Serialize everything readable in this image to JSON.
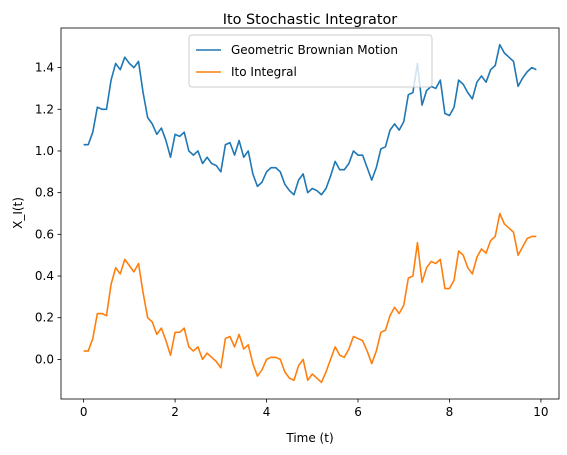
{
  "chart_data": {
    "type": "line",
    "title": "Ito Stochastic Integrator",
    "xlabel": "Time (t)",
    "ylabel": "X_I(t)",
    "xlim": [
      -0.495,
      10.395
    ],
    "ylim": [
      -0.19,
      1.59
    ],
    "xticks": [
      0,
      2,
      4,
      6,
      8,
      10
    ],
    "yticks": [
      0.0,
      0.2,
      0.4,
      0.6,
      0.8,
      1.0,
      1.2,
      1.4
    ],
    "grid": false,
    "legend_position": "upper center",
    "x": [
      0.0,
      0.1,
      0.2,
      0.3,
      0.4,
      0.5,
      0.6,
      0.7,
      0.8,
      0.9,
      1.0,
      1.1,
      1.2,
      1.3,
      1.4,
      1.5,
      1.6,
      1.7,
      1.8,
      1.9,
      2.0,
      2.1,
      2.2,
      2.3,
      2.4,
      2.5,
      2.6,
      2.7,
      2.8,
      2.9,
      3.0,
      3.1,
      3.2,
      3.3,
      3.4,
      3.5,
      3.6,
      3.7,
      3.8,
      3.9,
      4.0,
      4.1,
      4.2,
      4.3,
      4.4,
      4.5,
      4.6,
      4.7,
      4.8,
      4.9,
      5.0,
      5.1,
      5.2,
      5.3,
      5.4,
      5.5,
      5.6,
      5.7,
      5.8,
      5.9,
      6.0,
      6.1,
      6.2,
      6.3,
      6.4,
      6.5,
      6.6,
      6.7,
      6.8,
      6.9,
      7.0,
      7.1,
      7.2,
      7.3,
      7.4,
      7.5,
      7.6,
      7.7,
      7.8,
      7.9,
      8.0,
      8.1,
      8.2,
      8.3,
      8.4,
      8.5,
      8.6,
      8.7,
      8.8,
      8.9,
      9.0,
      9.1,
      9.2,
      9.3,
      9.4,
      9.5,
      9.6,
      9.7,
      9.8,
      9.9
    ],
    "series": [
      {
        "name": "Geometric Brownian Motion",
        "color": "#1f77b4",
        "values": [
          1.03,
          1.03,
          1.09,
          1.21,
          1.2,
          1.2,
          1.34,
          1.42,
          1.39,
          1.45,
          1.42,
          1.4,
          1.43,
          1.28,
          1.16,
          1.13,
          1.08,
          1.11,
          1.05,
          0.97,
          1.08,
          1.07,
          1.09,
          1.0,
          0.98,
          1.0,
          0.94,
          0.97,
          0.94,
          0.93,
          0.9,
          1.03,
          1.04,
          0.98,
          1.05,
          0.97,
          1.0,
          0.89,
          0.83,
          0.85,
          0.9,
          0.92,
          0.92,
          0.9,
          0.84,
          0.81,
          0.79,
          0.86,
          0.89,
          0.8,
          0.82,
          0.81,
          0.79,
          0.82,
          0.88,
          0.95,
          0.91,
          0.91,
          0.94,
          1.0,
          0.98,
          0.98,
          0.92,
          0.86,
          0.92,
          1.01,
          1.02,
          1.1,
          1.13,
          1.1,
          1.14,
          1.27,
          1.28,
          1.42,
          1.22,
          1.29,
          1.31,
          1.3,
          1.34,
          1.18,
          1.17,
          1.21,
          1.34,
          1.32,
          1.28,
          1.25,
          1.33,
          1.36,
          1.33,
          1.39,
          1.41,
          1.51,
          1.47,
          1.45,
          1.43,
          1.31,
          1.35,
          1.38,
          1.4,
          1.39
        ]
      },
      {
        "name": "Ito Integral",
        "color": "#ff7f0e",
        "values": [
          0.04,
          0.04,
          0.1,
          0.22,
          0.22,
          0.21,
          0.36,
          0.44,
          0.41,
          0.48,
          0.45,
          0.42,
          0.46,
          0.32,
          0.2,
          0.18,
          0.12,
          0.15,
          0.09,
          0.02,
          0.13,
          0.13,
          0.15,
          0.06,
          0.04,
          0.06,
          0.0,
          0.03,
          0.01,
          -0.01,
          -0.04,
          0.1,
          0.11,
          0.06,
          0.12,
          0.05,
          0.07,
          -0.02,
          -0.08,
          -0.05,
          0.0,
          0.01,
          0.01,
          0.0,
          -0.06,
          -0.09,
          -0.1,
          -0.03,
          0.0,
          -0.1,
          -0.07,
          -0.09,
          -0.11,
          -0.06,
          0.0,
          0.06,
          0.02,
          0.01,
          0.05,
          0.11,
          0.1,
          0.09,
          0.04,
          -0.02,
          0.04,
          0.13,
          0.14,
          0.21,
          0.25,
          0.22,
          0.26,
          0.39,
          0.4,
          0.56,
          0.37,
          0.44,
          0.47,
          0.46,
          0.48,
          0.34,
          0.34,
          0.38,
          0.52,
          0.5,
          0.44,
          0.41,
          0.49,
          0.53,
          0.51,
          0.57,
          0.59,
          0.7,
          0.65,
          0.63,
          0.61,
          0.5,
          0.54,
          0.58,
          0.59,
          0.59
        ]
      }
    ]
  }
}
